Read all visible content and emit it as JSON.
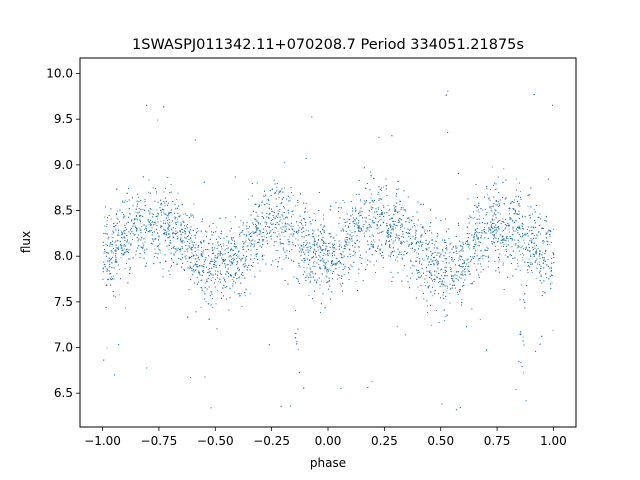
{
  "chart_data": {
    "type": "scatter",
    "title": "1SWASPJ011342.11+070208.7 Period 334051.21875s",
    "xlabel": "phase",
    "ylabel": "flux",
    "xlim": [
      -1.1,
      1.1
    ],
    "ylim": [
      6.13,
      10.17
    ],
    "xticks": [
      -1.0,
      -0.75,
      -0.5,
      -0.25,
      0.0,
      0.25,
      0.5,
      0.75,
      1.0
    ],
    "xtick_labels": [
      "−1.00",
      "−0.75",
      "−0.50",
      "−0.25",
      "0.00",
      "0.25",
      "0.50",
      "0.75",
      "1.00"
    ],
    "yticks": [
      6.5,
      7.0,
      7.5,
      8.0,
      8.5,
      9.0,
      9.5,
      10.0
    ],
    "ytick_labels": [
      "6.5",
      "7.0",
      "7.5",
      "8.0",
      "8.5",
      "9.0",
      "9.5",
      "10.0"
    ],
    "grid": false,
    "marker_color": "#1f77b4",
    "series": [
      {
        "phase": [
          -1.0,
          -0.95,
          -0.9,
          -0.85,
          -0.8,
          -0.75,
          -0.7,
          -0.65,
          -0.6,
          -0.55,
          -0.5,
          -0.45,
          -0.4,
          -0.35,
          -0.3,
          -0.25,
          -0.2,
          -0.15,
          -0.1,
          -0.05,
          0.0,
          0.05,
          0.1,
          0.15,
          0.2,
          0.25,
          0.3,
          0.35,
          0.4,
          0.45,
          0.5,
          0.55,
          0.6,
          0.65,
          0.7,
          0.75,
          0.8,
          0.85,
          0.9,
          0.95,
          1.0
        ],
        "flux_mean": [
          8.0,
          8.05,
          8.2,
          8.3,
          8.35,
          8.38,
          8.32,
          8.2,
          8.05,
          7.95,
          7.9,
          7.9,
          7.95,
          8.15,
          8.3,
          8.35,
          8.3,
          8.25,
          8.15,
          8.0,
          8.0,
          8.05,
          8.2,
          8.3,
          8.35,
          8.38,
          8.32,
          8.2,
          8.05,
          7.95,
          7.9,
          7.9,
          7.95,
          8.15,
          8.3,
          8.35,
          8.3,
          8.25,
          8.15,
          8.0,
          8.0
        ],
        "scatter_sigma": 0.22,
        "dips": [
          -0.14,
          0.86
        ],
        "dip_minimum": 6.7
      }
    ]
  }
}
